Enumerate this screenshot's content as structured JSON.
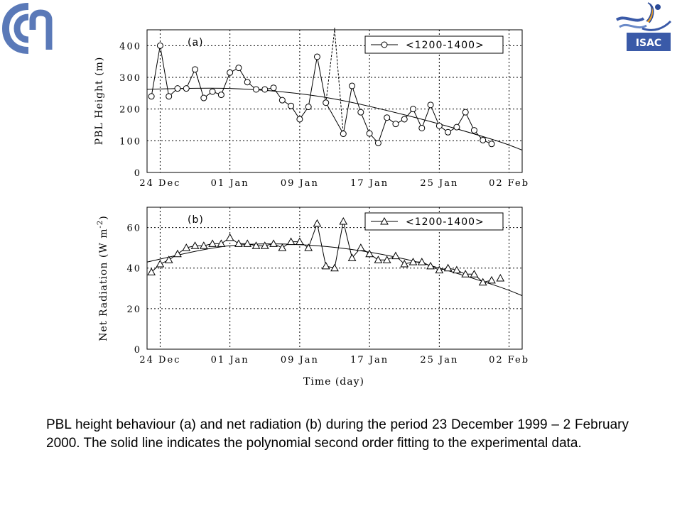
{
  "header": {
    "left_logo": "cnr-logo",
    "right_logo": "isac-logo",
    "right_logo_text": "ISAC"
  },
  "caption": "PBL height behaviour (a) and net radiation (b) during the period 23 December 1999 – 2 February 2000. The solid line indicates the polynomial second order fitting to the experimental data.",
  "chart_data": [
    {
      "type": "line",
      "panel_label": "(a)",
      "ylabel": "PBL Height (m)",
      "xlabel": "",
      "ylim": [
        0,
        450
      ],
      "yticks": [
        0,
        100,
        200,
        300,
        400
      ],
      "xlim": [
        -1.5,
        41.5
      ],
      "xticks": [
        {
          "x": 0,
          "label": "24 Dec"
        },
        {
          "x": 8,
          "label": "01 Jan"
        },
        {
          "x": 16,
          "label": "09 Jan"
        },
        {
          "x": 24,
          "label": "17 Jan"
        },
        {
          "x": 32,
          "label": "25 Jan"
        },
        {
          "x": 40,
          "label": "02 Feb"
        }
      ],
      "grid": true,
      "legend": {
        "placement": "top-right",
        "entries": [
          "<1200-1400>"
        ]
      },
      "marker": "circle",
      "series": [
        {
          "name": "<1200-1400>",
          "x": [
            -1,
            0,
            1,
            2,
            3,
            4,
            5,
            6,
            7,
            8,
            9,
            10,
            11,
            12,
            13,
            14,
            15,
            16,
            17,
            18,
            19,
            21,
            22,
            23,
            24,
            25,
            26,
            27,
            28,
            29,
            30,
            31,
            32,
            33,
            34,
            35,
            36,
            37,
            38
          ],
          "values": [
            240,
            400,
            240,
            265,
            265,
            325,
            235,
            255,
            245,
            315,
            330,
            285,
            262,
            262,
            267,
            228,
            210,
            168,
            207,
            365,
            220,
            122,
            273,
            190,
            123,
            93,
            173,
            153,
            168,
            200,
            140,
            213,
            147,
            127,
            143,
            190,
            133,
            102,
            90
          ]
        }
      ],
      "dashed_excursion": {
        "x": [
          19,
          20,
          21
        ],
        "values": [
          220,
          450,
          122
        ]
      },
      "fit_curve": {
        "x": [
          -2,
          8,
          18,
          28,
          38,
          42
        ],
        "values": [
          262,
          265,
          241,
          182,
          105,
          65
        ]
      }
    },
    {
      "type": "line",
      "panel_label": "(b)",
      "ylabel": "Net Radiation (W m-2)",
      "xlabel": "Time (day)",
      "ylim": [
        0,
        70
      ],
      "yticks": [
        0,
        20,
        40,
        60
      ],
      "xlim": [
        -1.5,
        41.5
      ],
      "xticks": [
        {
          "x": 0,
          "label": "24 Dec"
        },
        {
          "x": 8,
          "label": "01 Jan"
        },
        {
          "x": 16,
          "label": "09 Jan"
        },
        {
          "x": 24,
          "label": "17 Jan"
        },
        {
          "x": 32,
          "label": "25 Jan"
        },
        {
          "x": 40,
          "label": "02 Feb"
        }
      ],
      "grid": true,
      "legend": {
        "placement": "top-right",
        "entries": [
          "<1200-1400>"
        ]
      },
      "marker": "triangle",
      "series": [
        {
          "name": "<1200-1400>",
          "x": [
            -1,
            0,
            1,
            2,
            3,
            4,
            5,
            6,
            7,
            8,
            9,
            10,
            11,
            12,
            13,
            14,
            15,
            16,
            17,
            18,
            19,
            20,
            21,
            22,
            23,
            24,
            25,
            26,
            27,
            28,
            29,
            30,
            31,
            32,
            33,
            34,
            35,
            36,
            37,
            38
          ],
          "values": [
            38,
            42,
            44,
            47,
            50,
            51,
            51,
            52,
            52,
            55,
            52,
            52,
            51,
            51,
            52,
            50,
            53,
            53,
            50,
            62,
            41,
            40,
            63,
            45,
            50,
            47,
            44,
            44,
            46,
            42,
            43,
            43,
            41,
            39,
            40,
            39,
            37,
            37,
            33,
            34
          ]
        }
      ],
      "extra_points": {
        "x": [
          39
        ],
        "values": [
          35
        ]
      },
      "fit_curve": {
        "x": [
          -2,
          8,
          18,
          28,
          38,
          42
        ],
        "values": [
          42.5,
          51,
          51,
          44.5,
          32,
          25.5
        ]
      }
    }
  ]
}
